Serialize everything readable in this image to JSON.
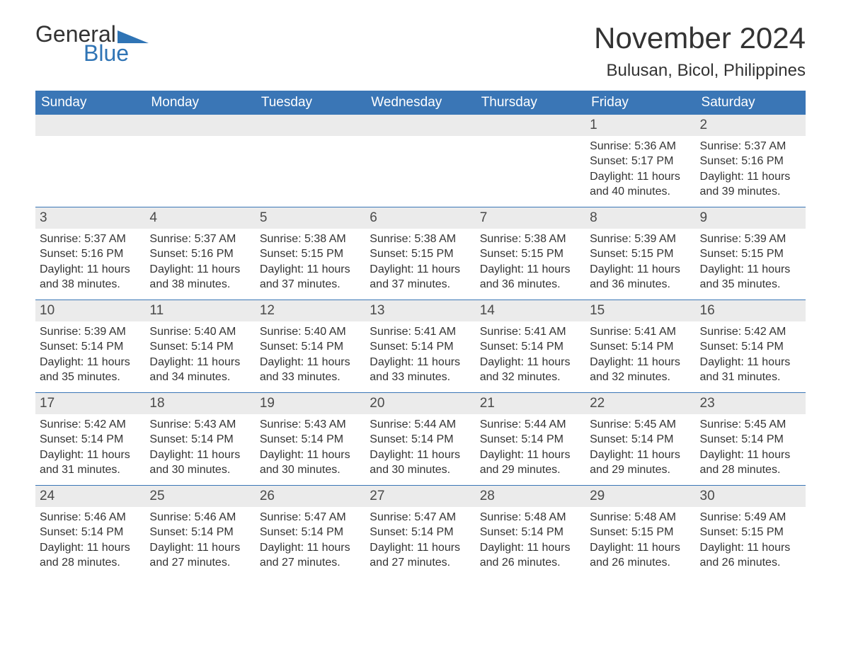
{
  "logo": {
    "word1": "General",
    "word2": "Blue",
    "triangle_color": "#2f74b5"
  },
  "title": "November 2024",
  "location": "Bulusan, Bicol, Philippines",
  "colors": {
    "header_bg": "#3a76b6",
    "header_text": "#ffffff",
    "daynum_bg": "#ebebeb",
    "body_text": "#333333",
    "rule": "#3a76b6",
    "page_bg": "#ffffff"
  },
  "typography": {
    "month_title_fontsize": 42,
    "location_fontsize": 24,
    "dow_fontsize": 19,
    "daynum_fontsize": 19,
    "detail_fontsize": 16
  },
  "days_of_week": [
    "Sunday",
    "Monday",
    "Tuesday",
    "Wednesday",
    "Thursday",
    "Friday",
    "Saturday"
  ],
  "leading_blanks": 5,
  "days": [
    {
      "n": 1,
      "sunrise": "5:36 AM",
      "sunset": "5:17 PM",
      "daylight": "11 hours and 40 minutes."
    },
    {
      "n": 2,
      "sunrise": "5:37 AM",
      "sunset": "5:16 PM",
      "daylight": "11 hours and 39 minutes."
    },
    {
      "n": 3,
      "sunrise": "5:37 AM",
      "sunset": "5:16 PM",
      "daylight": "11 hours and 38 minutes."
    },
    {
      "n": 4,
      "sunrise": "5:37 AM",
      "sunset": "5:16 PM",
      "daylight": "11 hours and 38 minutes."
    },
    {
      "n": 5,
      "sunrise": "5:38 AM",
      "sunset": "5:15 PM",
      "daylight": "11 hours and 37 minutes."
    },
    {
      "n": 6,
      "sunrise": "5:38 AM",
      "sunset": "5:15 PM",
      "daylight": "11 hours and 37 minutes."
    },
    {
      "n": 7,
      "sunrise": "5:38 AM",
      "sunset": "5:15 PM",
      "daylight": "11 hours and 36 minutes."
    },
    {
      "n": 8,
      "sunrise": "5:39 AM",
      "sunset": "5:15 PM",
      "daylight": "11 hours and 36 minutes."
    },
    {
      "n": 9,
      "sunrise": "5:39 AM",
      "sunset": "5:15 PM",
      "daylight": "11 hours and 35 minutes."
    },
    {
      "n": 10,
      "sunrise": "5:39 AM",
      "sunset": "5:14 PM",
      "daylight": "11 hours and 35 minutes."
    },
    {
      "n": 11,
      "sunrise": "5:40 AM",
      "sunset": "5:14 PM",
      "daylight": "11 hours and 34 minutes."
    },
    {
      "n": 12,
      "sunrise": "5:40 AM",
      "sunset": "5:14 PM",
      "daylight": "11 hours and 33 minutes."
    },
    {
      "n": 13,
      "sunrise": "5:41 AM",
      "sunset": "5:14 PM",
      "daylight": "11 hours and 33 minutes."
    },
    {
      "n": 14,
      "sunrise": "5:41 AM",
      "sunset": "5:14 PM",
      "daylight": "11 hours and 32 minutes."
    },
    {
      "n": 15,
      "sunrise": "5:41 AM",
      "sunset": "5:14 PM",
      "daylight": "11 hours and 32 minutes."
    },
    {
      "n": 16,
      "sunrise": "5:42 AM",
      "sunset": "5:14 PM",
      "daylight": "11 hours and 31 minutes."
    },
    {
      "n": 17,
      "sunrise": "5:42 AM",
      "sunset": "5:14 PM",
      "daylight": "11 hours and 31 minutes."
    },
    {
      "n": 18,
      "sunrise": "5:43 AM",
      "sunset": "5:14 PM",
      "daylight": "11 hours and 30 minutes."
    },
    {
      "n": 19,
      "sunrise": "5:43 AM",
      "sunset": "5:14 PM",
      "daylight": "11 hours and 30 minutes."
    },
    {
      "n": 20,
      "sunrise": "5:44 AM",
      "sunset": "5:14 PM",
      "daylight": "11 hours and 30 minutes."
    },
    {
      "n": 21,
      "sunrise": "5:44 AM",
      "sunset": "5:14 PM",
      "daylight": "11 hours and 29 minutes."
    },
    {
      "n": 22,
      "sunrise": "5:45 AM",
      "sunset": "5:14 PM",
      "daylight": "11 hours and 29 minutes."
    },
    {
      "n": 23,
      "sunrise": "5:45 AM",
      "sunset": "5:14 PM",
      "daylight": "11 hours and 28 minutes."
    },
    {
      "n": 24,
      "sunrise": "5:46 AM",
      "sunset": "5:14 PM",
      "daylight": "11 hours and 28 minutes."
    },
    {
      "n": 25,
      "sunrise": "5:46 AM",
      "sunset": "5:14 PM",
      "daylight": "11 hours and 27 minutes."
    },
    {
      "n": 26,
      "sunrise": "5:47 AM",
      "sunset": "5:14 PM",
      "daylight": "11 hours and 27 minutes."
    },
    {
      "n": 27,
      "sunrise": "5:47 AM",
      "sunset": "5:14 PM",
      "daylight": "11 hours and 27 minutes."
    },
    {
      "n": 28,
      "sunrise": "5:48 AM",
      "sunset": "5:14 PM",
      "daylight": "11 hours and 26 minutes."
    },
    {
      "n": 29,
      "sunrise": "5:48 AM",
      "sunset": "5:15 PM",
      "daylight": "11 hours and 26 minutes."
    },
    {
      "n": 30,
      "sunrise": "5:49 AM",
      "sunset": "5:15 PM",
      "daylight": "11 hours and 26 minutes."
    }
  ],
  "labels": {
    "sunrise": "Sunrise:",
    "sunset": "Sunset:",
    "daylight": "Daylight:"
  }
}
